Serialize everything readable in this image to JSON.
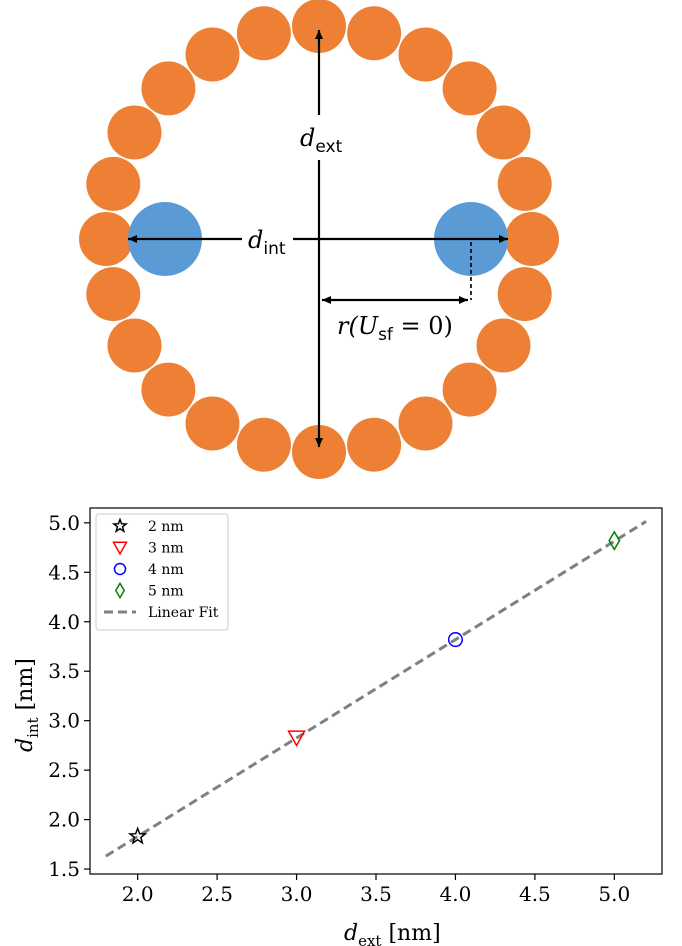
{
  "schematic": {
    "outer_color": "#ED8035",
    "inner_color": "#5B9BD5",
    "outer_particle_count": 24,
    "labels": {
      "d_ext": {
        "main": "d",
        "sub": "ext"
      },
      "d_int": {
        "main": "d",
        "sub": "int"
      },
      "r": {
        "main": "r(U",
        "sub": "sf",
        "tail": " = 0)"
      }
    }
  },
  "chart_data": {
    "type": "scatter",
    "xlabel": {
      "main": "d",
      "sub": "ext",
      "unit": " [nm]"
    },
    "ylabel": {
      "main": "d",
      "sub": "int",
      "unit": " [nm]"
    },
    "xlim": [
      1.7,
      5.3
    ],
    "ylim": [
      1.45,
      5.15
    ],
    "xticks": [
      "2.0",
      "2.5",
      "3.0",
      "3.5",
      "4.0",
      "4.5",
      "5.0"
    ],
    "yticks": [
      "1.5",
      "2.0",
      "2.5",
      "3.0",
      "3.5",
      "4.0",
      "4.5",
      "5.0"
    ],
    "grid": false,
    "legend_position": "top-left",
    "series": [
      {
        "name": "2 nm",
        "marker": "star",
        "color": "#000000",
        "x": 2.0,
        "y": 1.83
      },
      {
        "name": "3 nm",
        "marker": "triangle-down",
        "color": "#FF0000",
        "x": 3.0,
        "y": 2.83
      },
      {
        "name": "4 nm",
        "marker": "circle",
        "color": "#0000FF",
        "x": 4.0,
        "y": 3.82
      },
      {
        "name": "5 nm",
        "marker": "diamond",
        "color": "#008000",
        "x": 5.0,
        "y": 4.82
      }
    ],
    "fit": {
      "name": "Linear Fit",
      "color": "#808080",
      "slope": 0.995,
      "intercept": -0.16,
      "x_range": [
        1.8,
        5.2
      ]
    }
  }
}
